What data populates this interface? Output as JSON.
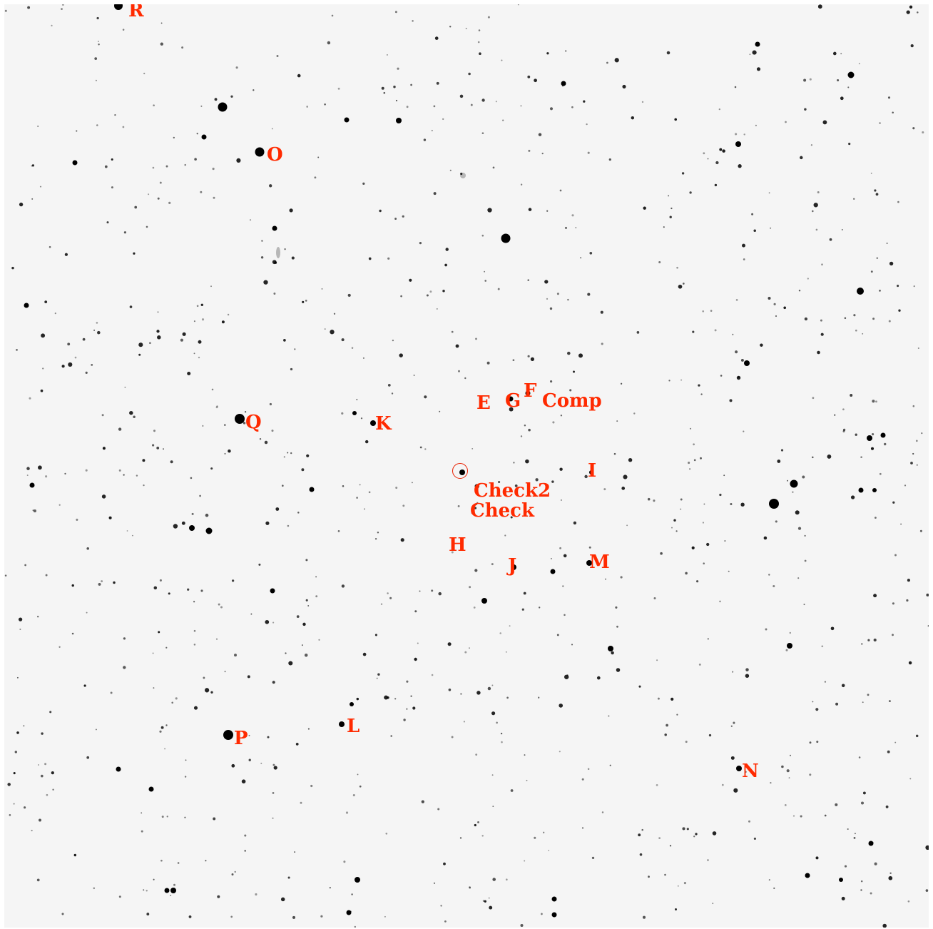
{
  "image": {
    "background_color": "#f5f5f5",
    "star_color": "#000000",
    "label_color": "#ff2a00",
    "target_marker_color": "#e82000"
  },
  "labels": {
    "R": "R",
    "O": "O",
    "Q": "Q",
    "K": "K",
    "E": "E",
    "G": "G",
    "F": "F",
    "Comp": "Comp",
    "I": "I",
    "Check2": "Check2",
    "Check": "Check",
    "H": "H",
    "J": "J",
    "M": "M",
    "L": "L",
    "P": "P",
    "N": "N"
  },
  "target_marker": {
    "icon": "target-circle-icon"
  }
}
